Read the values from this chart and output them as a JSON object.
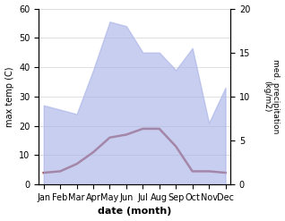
{
  "months": [
    "Jan",
    "Feb",
    "Mar",
    "Apr",
    "May",
    "Jun",
    "Jul",
    "Aug",
    "Sep",
    "Oct",
    "Nov",
    "Dec"
  ],
  "temp_line": [
    4,
    4.5,
    7,
    11,
    16,
    17,
    19,
    19,
    13,
    4.5,
    4.5,
    4
  ],
  "precip": [
    9,
    8.5,
    8,
    13,
    18.5,
    18,
    15,
    15,
    13,
    15.5,
    7,
    11
  ],
  "ylim_left": [
    0,
    60
  ],
  "ylim_right": [
    0,
    20
  ],
  "area_color": "#aab4e8",
  "line_color": "#993333",
  "area_alpha": 0.65,
  "xlabel": "date (month)",
  "ylabel_left": "max temp (C)",
  "ylabel_right": "med. precipitation\n(kg/m2)",
  "yticks_left": [
    0,
    10,
    20,
    30,
    40,
    50,
    60
  ],
  "yticks_right": [
    0,
    5,
    10,
    15,
    20
  ]
}
